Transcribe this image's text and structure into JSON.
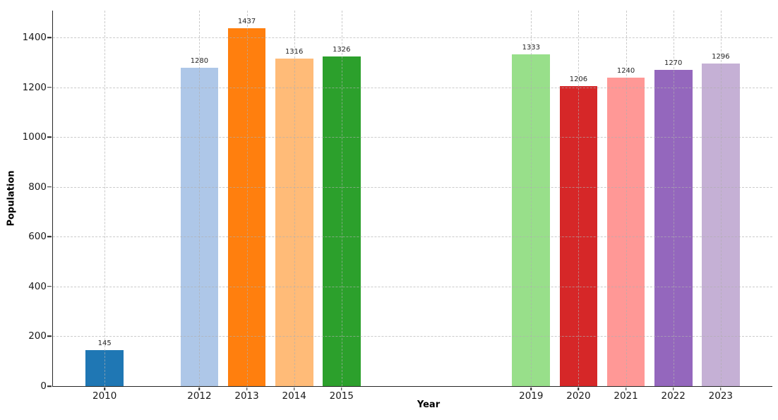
{
  "chart_data": {
    "type": "bar",
    "title": "",
    "xlabel": "Year",
    "ylabel": "Population",
    "x": [
      2010,
      2012,
      2013,
      2014,
      2015,
      2019,
      2020,
      2021,
      2022,
      2023
    ],
    "categories": [
      "2010",
      "2012",
      "2013",
      "2014",
      "2015",
      "2019",
      "2020",
      "2021",
      "2022",
      "2023"
    ],
    "values": [
      145,
      1280,
      1437,
      1316,
      1326,
      1333,
      1206,
      1240,
      1270,
      1296
    ],
    "value_labels": [
      "145",
      "1280",
      "1437",
      "1316",
      "1326",
      "1333",
      "1206",
      "1240",
      "1270",
      "1296"
    ],
    "bar_colors": [
      "#1f77b4",
      "#aec7e8",
      "#ff7f0e",
      "#ffbb78",
      "#2ca02c",
      "#98df8a",
      "#d62728",
      "#ff9896",
      "#9467bd",
      "#c5b0d5"
    ],
    "xlim": [
      2008.91,
      2024.09
    ],
    "ylim": [
      0,
      1509
    ],
    "yticks": [
      0,
      200,
      400,
      600,
      800,
      1000,
      1200,
      1400
    ],
    "bar_width": 0.8,
    "grid": true,
    "grid_linestyle": "dashed",
    "grid_over_bars": true,
    "legend": "none",
    "axis_color": "#262626",
    "grid_color": "#afafaf",
    "tick_label_color": "#1a1a1a",
    "value_label_color": "#262626",
    "background_color": "#ffffff"
  }
}
